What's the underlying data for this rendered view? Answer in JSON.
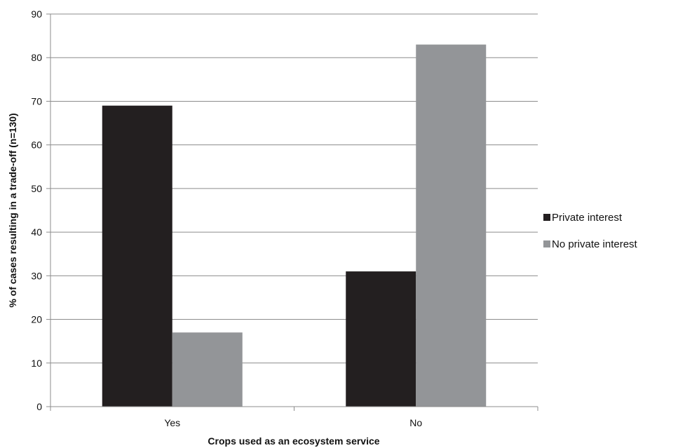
{
  "chart_data": {
    "type": "bar",
    "categories": [
      "Yes",
      "No"
    ],
    "series": [
      {
        "name": "Private interest",
        "values": [
          69,
          31
        ],
        "color": "#231f20"
      },
      {
        "name": "No private interest",
        "values": [
          17,
          83
        ],
        "color": "#939598"
      }
    ],
    "xlabel": "Crops used as an ecosystem service",
    "ylabel": "% of cases resulting in a trade-off (n=130)",
    "ylim": [
      0,
      90
    ],
    "yticks": [
      0,
      10,
      20,
      30,
      40,
      50,
      60,
      70,
      80,
      90
    ],
    "grid": true,
    "legend_position": "right"
  }
}
